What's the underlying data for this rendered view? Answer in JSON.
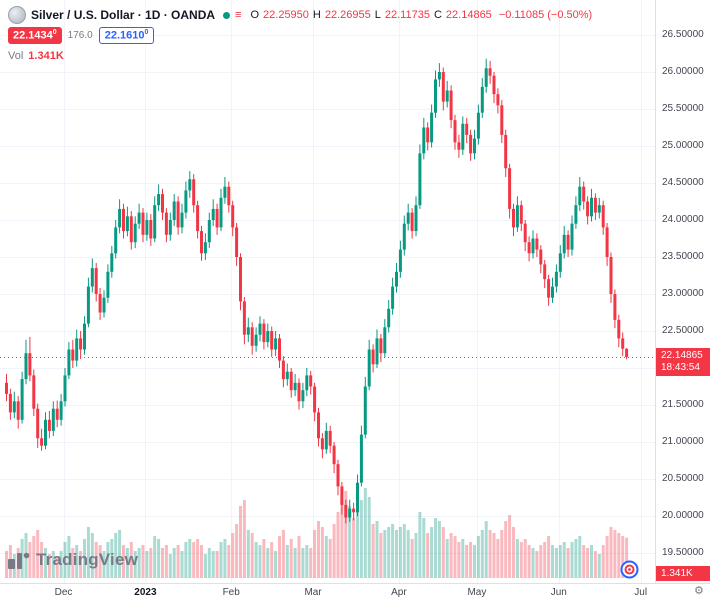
{
  "header": {
    "symbol_title": "Silver / U.S. Dollar · 1D · OANDA",
    "ohlc": {
      "o_label": "O",
      "o_value": "22.25950",
      "h_label": "H",
      "h_value": "22.26955",
      "l_label": "L",
      "l_value": "22.11735",
      "c_label": "C",
      "c_value": "22.14865",
      "change": "−0.11085 (−0.50%)"
    },
    "bid": "22.1434",
    "bid_sup": "0",
    "spread": "176.0",
    "ask": "22.1610",
    "ask_sup": "0",
    "vol_label": "Vol",
    "vol_value": "1.341K"
  },
  "price_label": {
    "value": "22.14865",
    "countdown": "18:43:54"
  },
  "volume_label": {
    "value": "1.341K"
  },
  "watermark": {
    "text": "TradingView"
  },
  "icons": {
    "gear": "⚙"
  },
  "colors": {
    "up": "#089981",
    "down": "#f23645",
    "vol_up": "rgba(8,153,129,0.35)",
    "vol_down": "rgba(242,54,69,0.35)",
    "grid": "#f0f3fa",
    "accent_blue": "#2962ff",
    "text": "#131722",
    "muted": "#787b86"
  },
  "chart_data": {
    "type": "candlestick",
    "title": "Silver / U.S. Dollar, 1D, OANDA",
    "xlabel": "",
    "ylabel": "",
    "ylim": [
      19.35,
      26.6
    ],
    "grid": true,
    "last_price": 22.14865,
    "y_ticks": [
      26.5,
      26.0,
      25.5,
      25.0,
      24.5,
      24.0,
      23.5,
      23.0,
      22.5,
      22.0,
      21.5,
      21.0,
      20.5,
      20.0,
      19.5
    ],
    "x_ticks": [
      {
        "label": "Dec",
        "index": 15
      },
      {
        "label": "2023",
        "index": 36,
        "bold": true
      },
      {
        "label": "Feb",
        "index": 58
      },
      {
        "label": "Mar",
        "index": 79
      },
      {
        "label": "Apr",
        "index": 101
      },
      {
        "label": "May",
        "index": 121
      },
      {
        "label": "Jun",
        "index": 142
      },
      {
        "label": "Jul",
        "index": 163
      }
    ],
    "candles_format": [
      "open",
      "high",
      "low",
      "close",
      "volume_k"
    ],
    "candles": [
      [
        21.8,
        21.92,
        21.55,
        21.65,
        0.9
      ],
      [
        21.65,
        21.72,
        21.3,
        21.4,
        1.1
      ],
      [
        21.4,
        21.68,
        21.32,
        21.55,
        0.8
      ],
      [
        21.55,
        21.62,
        21.18,
        21.3,
        1.0
      ],
      [
        21.3,
        21.95,
        21.25,
        21.85,
        1.3
      ],
      [
        21.85,
        22.38,
        21.78,
        22.2,
        1.5
      ],
      [
        22.2,
        22.42,
        21.82,
        21.9,
        1.2
      ],
      [
        21.9,
        21.98,
        21.35,
        21.45,
        1.4
      ],
      [
        21.45,
        21.52,
        20.92,
        21.05,
        1.6
      ],
      [
        21.05,
        21.18,
        20.88,
        20.95,
        1.2
      ],
      [
        20.95,
        21.4,
        20.9,
        21.3,
        1.0
      ],
      [
        21.3,
        21.42,
        21.05,
        21.15,
        0.8
      ],
      [
        21.15,
        21.55,
        21.08,
        21.45,
        0.9
      ],
      [
        21.45,
        21.56,
        21.2,
        21.3,
        0.7
      ],
      [
        21.3,
        21.65,
        21.22,
        21.55,
        0.9
      ],
      [
        21.55,
        22.0,
        21.48,
        21.9,
        1.2
      ],
      [
        21.9,
        22.35,
        21.85,
        22.25,
        1.4
      ],
      [
        22.25,
        22.38,
        22.0,
        22.1,
        1.0
      ],
      [
        22.1,
        22.52,
        22.02,
        22.4,
        1.1
      ],
      [
        22.4,
        22.5,
        22.12,
        22.25,
        0.9
      ],
      [
        22.25,
        22.7,
        22.18,
        22.6,
        1.3
      ],
      [
        22.6,
        23.22,
        22.55,
        23.1,
        1.7
      ],
      [
        23.1,
        23.48,
        23.02,
        23.35,
        1.5
      ],
      [
        23.35,
        23.42,
        22.9,
        23.0,
        1.2
      ],
      [
        23.0,
        23.08,
        22.65,
        22.75,
        1.1
      ],
      [
        22.75,
        23.05,
        22.68,
        22.95,
        0.9
      ],
      [
        22.95,
        23.4,
        22.88,
        23.3,
        1.2
      ],
      [
        23.3,
        23.65,
        23.22,
        23.55,
        1.3
      ],
      [
        23.55,
        24.0,
        23.48,
        23.9,
        1.5
      ],
      [
        23.9,
        24.28,
        23.82,
        24.15,
        1.6
      ],
      [
        24.15,
        24.22,
        23.75,
        23.85,
        1.1
      ],
      [
        23.85,
        24.18,
        23.78,
        24.05,
        1.0
      ],
      [
        24.05,
        24.12,
        23.6,
        23.7,
        1.2
      ],
      [
        23.7,
        24.05,
        23.62,
        23.95,
        0.9
      ],
      [
        23.95,
        24.22,
        23.88,
        24.1,
        1.0
      ],
      [
        24.1,
        24.16,
        23.7,
        23.8,
        1.1
      ],
      [
        23.8,
        24.1,
        23.72,
        24.0,
        0.9
      ],
      [
        24.0,
        24.08,
        23.65,
        23.75,
        1.0
      ],
      [
        23.75,
        24.32,
        23.7,
        24.2,
        1.4
      ],
      [
        24.2,
        24.48,
        24.12,
        24.35,
        1.3
      ],
      [
        24.35,
        24.42,
        24.0,
        24.1,
        1.0
      ],
      [
        24.1,
        24.16,
        23.7,
        23.8,
        1.1
      ],
      [
        23.8,
        24.1,
        23.72,
        24.0,
        0.8
      ],
      [
        24.0,
        24.35,
        23.92,
        24.25,
        1.0
      ],
      [
        24.25,
        24.32,
        23.8,
        23.9,
        1.1
      ],
      [
        23.9,
        24.22,
        23.82,
        24.1,
        0.9
      ],
      [
        24.1,
        24.52,
        24.02,
        24.4,
        1.2
      ],
      [
        24.4,
        24.66,
        24.3,
        24.55,
        1.3
      ],
      [
        24.55,
        24.62,
        24.1,
        24.2,
        1.2
      ],
      [
        24.2,
        24.26,
        23.75,
        23.85,
        1.3
      ],
      [
        23.85,
        23.92,
        23.45,
        23.55,
        1.1
      ],
      [
        23.55,
        23.82,
        23.46,
        23.7,
        0.8
      ],
      [
        23.7,
        24.1,
        23.62,
        24.0,
        1.0
      ],
      [
        24.0,
        24.28,
        23.92,
        24.15,
        0.9
      ],
      [
        24.15,
        24.22,
        23.8,
        23.9,
        0.9
      ],
      [
        23.9,
        24.42,
        23.85,
        24.3,
        1.2
      ],
      [
        24.3,
        24.58,
        24.22,
        24.45,
        1.3
      ],
      [
        24.45,
        24.52,
        24.1,
        24.2,
        1.1
      ],
      [
        24.2,
        24.26,
        23.78,
        23.9,
        1.5
      ],
      [
        23.9,
        23.96,
        23.38,
        23.5,
        1.8
      ],
      [
        23.5,
        23.55,
        22.78,
        22.9,
        2.4
      ],
      [
        22.9,
        22.96,
        22.32,
        22.45,
        2.6
      ],
      [
        22.45,
        22.68,
        22.35,
        22.55,
        1.6
      ],
      [
        22.55,
        22.62,
        22.18,
        22.3,
        1.5
      ],
      [
        22.3,
        22.55,
        22.22,
        22.45,
        1.2
      ],
      [
        22.45,
        22.7,
        22.36,
        22.6,
        1.1
      ],
      [
        22.6,
        22.66,
        22.25,
        22.35,
        1.3
      ],
      [
        22.35,
        22.6,
        22.28,
        22.5,
        1.0
      ],
      [
        22.5,
        22.56,
        22.15,
        22.25,
        1.2
      ],
      [
        22.25,
        22.5,
        22.16,
        22.4,
        0.9
      ],
      [
        22.4,
        22.46,
        22.0,
        22.1,
        1.4
      ],
      [
        22.1,
        22.16,
        21.74,
        21.85,
        1.6
      ],
      [
        21.85,
        22.06,
        21.76,
        21.95,
        1.1
      ],
      [
        21.95,
        22.0,
        21.6,
        21.7,
        1.3
      ],
      [
        21.7,
        21.92,
        21.62,
        21.8,
        1.0
      ],
      [
        21.8,
        21.86,
        21.44,
        21.55,
        1.4
      ],
      [
        21.55,
        21.8,
        21.46,
        21.7,
        1.0
      ],
      [
        21.7,
        22.0,
        21.62,
        21.9,
        1.1
      ],
      [
        21.9,
        21.96,
        21.64,
        21.75,
        1.0
      ],
      [
        21.75,
        21.8,
        21.28,
        21.4,
        1.6
      ],
      [
        21.4,
        21.46,
        20.94,
        21.05,
        1.9
      ],
      [
        21.05,
        21.12,
        20.78,
        20.9,
        1.7
      ],
      [
        20.9,
        21.26,
        20.84,
        21.15,
        1.4
      ],
      [
        21.15,
        21.22,
        20.85,
        20.95,
        1.3
      ],
      [
        20.95,
        21.0,
        20.58,
        20.7,
        1.8
      ],
      [
        20.7,
        20.76,
        20.28,
        20.4,
        2.2
      ],
      [
        20.4,
        20.46,
        20.02,
        20.15,
        2.6
      ],
      [
        20.15,
        20.22,
        19.9,
        19.98,
        2.9
      ],
      [
        19.98,
        20.22,
        19.92,
        20.1,
        2.4
      ],
      [
        20.1,
        20.18,
        19.94,
        20.05,
        2.0
      ],
      [
        20.05,
        20.56,
        20.0,
        20.45,
        2.2
      ],
      [
        20.45,
        21.22,
        20.4,
        21.1,
        2.6
      ],
      [
        21.1,
        21.88,
        21.05,
        21.75,
        3.0
      ],
      [
        21.75,
        22.38,
        21.7,
        22.25,
        2.7
      ],
      [
        22.25,
        22.32,
        21.94,
        22.05,
        1.8
      ],
      [
        22.05,
        22.52,
        22.0,
        22.4,
        1.9
      ],
      [
        22.4,
        22.46,
        22.08,
        22.2,
        1.5
      ],
      [
        22.2,
        22.66,
        22.14,
        22.55,
        1.6
      ],
      [
        22.55,
        22.92,
        22.48,
        22.8,
        1.7
      ],
      [
        22.8,
        23.22,
        22.72,
        23.1,
        1.8
      ],
      [
        23.1,
        23.42,
        23.02,
        23.3,
        1.6
      ],
      [
        23.3,
        23.72,
        23.22,
        23.6,
        1.7
      ],
      [
        23.6,
        24.06,
        23.52,
        23.95,
        1.8
      ],
      [
        23.95,
        24.22,
        23.86,
        24.1,
        1.6
      ],
      [
        24.1,
        24.16,
        23.75,
        23.85,
        1.3
      ],
      [
        23.85,
        24.32,
        23.78,
        24.2,
        1.5
      ],
      [
        24.2,
        25.02,
        24.15,
        24.9,
        2.2
      ],
      [
        24.9,
        25.38,
        24.82,
        25.25,
        2.0
      ],
      [
        25.25,
        25.32,
        24.94,
        25.05,
        1.5
      ],
      [
        25.05,
        25.56,
        24.98,
        25.45,
        1.7
      ],
      [
        25.45,
        26.02,
        25.38,
        25.9,
        2.0
      ],
      [
        25.9,
        26.12,
        25.8,
        26.0,
        1.9
      ],
      [
        26.0,
        26.06,
        25.48,
        25.6,
        1.7
      ],
      [
        25.6,
        25.88,
        25.52,
        25.75,
        1.3
      ],
      [
        25.75,
        25.82,
        25.24,
        25.35,
        1.5
      ],
      [
        25.35,
        25.42,
        24.95,
        25.05,
        1.4
      ],
      [
        25.05,
        25.15,
        24.84,
        24.95,
        1.2
      ],
      [
        24.95,
        25.4,
        24.88,
        25.3,
        1.3
      ],
      [
        25.3,
        25.38,
        25.04,
        25.15,
        1.1
      ],
      [
        25.15,
        25.22,
        24.8,
        24.9,
        1.2
      ],
      [
        24.9,
        25.22,
        24.82,
        25.1,
        1.1
      ],
      [
        25.1,
        25.56,
        25.02,
        25.45,
        1.4
      ],
      [
        25.45,
        25.92,
        25.38,
        25.8,
        1.6
      ],
      [
        25.8,
        26.18,
        25.72,
        26.05,
        1.9
      ],
      [
        26.05,
        26.15,
        25.84,
        25.95,
        1.6
      ],
      [
        25.95,
        26.0,
        25.58,
        25.7,
        1.5
      ],
      [
        25.7,
        25.78,
        25.44,
        25.55,
        1.3
      ],
      [
        25.55,
        25.62,
        25.04,
        25.15,
        1.6
      ],
      [
        25.15,
        25.22,
        24.58,
        24.7,
        1.9
      ],
      [
        24.7,
        24.76,
        24.02,
        24.15,
        2.1
      ],
      [
        24.15,
        24.22,
        23.78,
        23.9,
        1.7
      ],
      [
        23.9,
        24.32,
        23.84,
        24.2,
        1.3
      ],
      [
        24.2,
        24.26,
        23.85,
        23.95,
        1.2
      ],
      [
        23.95,
        24.0,
        23.58,
        23.7,
        1.3
      ],
      [
        23.7,
        23.78,
        23.44,
        23.55,
        1.1
      ],
      [
        23.55,
        23.86,
        23.48,
        23.75,
        1.0
      ],
      [
        23.75,
        23.82,
        23.5,
        23.6,
        0.9
      ],
      [
        23.6,
        23.66,
        23.28,
        23.4,
        1.1
      ],
      [
        23.4,
        23.46,
        23.08,
        23.2,
        1.2
      ],
      [
        23.2,
        23.26,
        22.84,
        22.95,
        1.4
      ],
      [
        22.95,
        23.22,
        22.88,
        23.1,
        1.1
      ],
      [
        23.1,
        23.4,
        23.02,
        23.3,
        1.0
      ],
      [
        23.3,
        23.66,
        23.22,
        23.55,
        1.1
      ],
      [
        23.55,
        23.92,
        23.48,
        23.8,
        1.2
      ],
      [
        23.8,
        23.86,
        23.5,
        23.6,
        1.0
      ],
      [
        23.6,
        24.06,
        23.52,
        23.95,
        1.2
      ],
      [
        23.95,
        24.32,
        23.88,
        24.2,
        1.3
      ],
      [
        24.2,
        24.58,
        24.12,
        24.45,
        1.4
      ],
      [
        24.45,
        24.52,
        24.14,
        24.25,
        1.1
      ],
      [
        24.25,
        24.32,
        23.94,
        24.05,
        1.0
      ],
      [
        24.05,
        24.42,
        23.98,
        24.3,
        1.1
      ],
      [
        24.3,
        24.36,
        24.0,
        24.1,
        0.9
      ],
      [
        24.1,
        24.3,
        24.02,
        24.2,
        0.8
      ],
      [
        24.2,
        24.26,
        23.8,
        23.9,
        1.1
      ],
      [
        23.9,
        23.96,
        23.38,
        23.5,
        1.4
      ],
      [
        23.5,
        23.56,
        22.88,
        23.0,
        1.7
      ],
      [
        23.0,
        23.06,
        22.54,
        22.65,
        1.6
      ],
      [
        22.65,
        22.72,
        22.28,
        22.4,
        1.5
      ],
      [
        22.4,
        22.48,
        22.16,
        22.26,
        1.4
      ],
      [
        22.2595,
        22.26955,
        22.11735,
        22.14865,
        1.341
      ]
    ]
  }
}
